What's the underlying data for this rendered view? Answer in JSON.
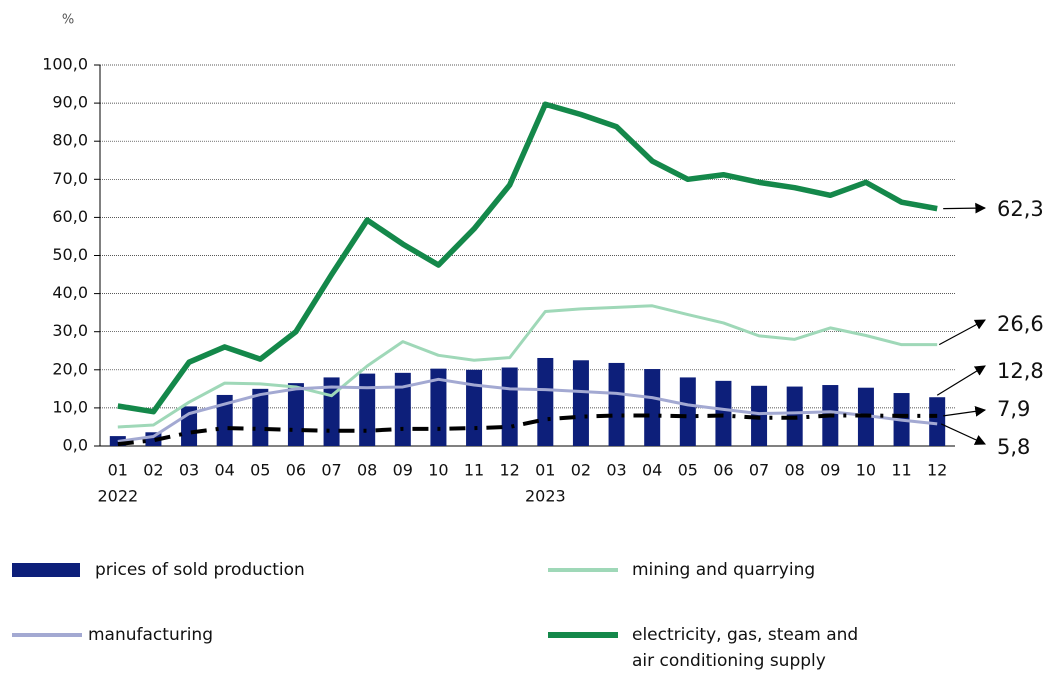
{
  "chart_data": {
    "type": "bar",
    "y_label": "%",
    "categories": [
      "01",
      "02",
      "03",
      "04",
      "05",
      "06",
      "07",
      "08",
      "09",
      "10",
      "11",
      "12",
      "01",
      "02",
      "03",
      "04",
      "05",
      "06",
      "07",
      "08",
      "09",
      "10",
      "11",
      "12"
    ],
    "category_years": [
      "2022",
      null,
      null,
      null,
      null,
      null,
      null,
      null,
      null,
      null,
      null,
      null,
      "2023",
      null,
      null,
      null,
      null,
      null,
      null,
      null,
      null,
      null,
      null,
      null
    ],
    "ylim": [
      0,
      100
    ],
    "yticks": [
      {
        "value": 0,
        "label": "0,0"
      },
      {
        "value": 10,
        "label": "10,0"
      },
      {
        "value": 20,
        "label": "20,0"
      },
      {
        "value": 30,
        "label": "30,0"
      },
      {
        "value": 40,
        "label": "40,0"
      },
      {
        "value": 50,
        "label": "50,0"
      },
      {
        "value": 60,
        "label": "60,0"
      },
      {
        "value": 70,
        "label": "70,0"
      },
      {
        "value": 80,
        "label": "80,0"
      },
      {
        "value": 90,
        "label": "90,0"
      },
      {
        "value": 100,
        "label": "100,0"
      }
    ],
    "grid": true,
    "series": [
      {
        "name": "prices of sold production",
        "type": "bar",
        "color": "#0d1f7a",
        "values": [
          2.6,
          3.6,
          10.4,
          13.4,
          15.0,
          16.5,
          18.0,
          19.0,
          19.2,
          20.3,
          20.0,
          20.6,
          23.1,
          22.5,
          21.8,
          20.2,
          18.0,
          17.1,
          15.8,
          15.6,
          16.0,
          15.3,
          13.9,
          12.8
        ],
        "value_labels": [
          null,
          null,
          null,
          null,
          null,
          null,
          null,
          null,
          null,
          null,
          null,
          null,
          null,
          null,
          null,
          null,
          null,
          null,
          null,
          null,
          null,
          null,
          null,
          "12,8"
        ]
      },
      {
        "name": "mining and quarrying",
        "type": "line",
        "color": "#9fd8b8",
        "values": [
          5.0,
          5.5,
          11.5,
          16.5,
          16.3,
          15.5,
          13.2,
          21.0,
          27.4,
          23.8,
          22.5,
          23.2,
          35.3,
          36.0,
          36.4,
          36.8,
          34.5,
          32.3,
          28.9,
          28.0,
          31.0,
          29.0,
          26.6,
          26.6
        ],
        "value_labels": [
          null,
          null,
          null,
          null,
          null,
          null,
          null,
          null,
          null,
          null,
          null,
          null,
          null,
          null,
          null,
          null,
          null,
          null,
          null,
          null,
          null,
          null,
          null,
          "26,6"
        ]
      },
      {
        "name": "manufacturing",
        "type": "line",
        "color": "#a3a9d2",
        "values": [
          1.2,
          2.5,
          8.5,
          11.0,
          13.5,
          15.0,
          15.5,
          15.3,
          15.5,
          17.5,
          16.0,
          15.0,
          14.8,
          14.3,
          13.8,
          12.7,
          10.8,
          9.6,
          8.5,
          8.7,
          9.0,
          8.0,
          6.8,
          5.8
        ],
        "value_labels": [
          null,
          null,
          null,
          null,
          null,
          null,
          null,
          null,
          null,
          null,
          null,
          null,
          null,
          null,
          null,
          null,
          null,
          null,
          null,
          null,
          null,
          null,
          null,
          "5,8"
        ]
      },
      {
        "name": "electricity, gas, steam and\nair conditioning supply",
        "type": "line",
        "color": "#14884a",
        "values": [
          10.5,
          9.0,
          22.0,
          26.0,
          22.8,
          30.0,
          45.0,
          59.3,
          53.0,
          47.5,
          57.0,
          68.5,
          89.7,
          87.0,
          83.8,
          74.8,
          70.0,
          71.2,
          69.2,
          67.8,
          65.8,
          69.2,
          64.0,
          62.3
        ],
        "value_labels": [
          null,
          null,
          null,
          null,
          null,
          null,
          null,
          null,
          null,
          null,
          null,
          null,
          null,
          null,
          null,
          null,
          null,
          null,
          null,
          null,
          null,
          null,
          null,
          "62,3"
        ]
      },
      {
        "type": "line",
        "color": "#000000",
        "dashed": true,
        "values": [
          0.5,
          1.5,
          3.5,
          4.7,
          4.5,
          4.2,
          4.0,
          4.0,
          4.5,
          4.5,
          4.7,
          5.0,
          7.0,
          7.7,
          8.0,
          8.0,
          7.8,
          8.0,
          7.4,
          7.4,
          8.0,
          8.0,
          7.9,
          7.9
        ],
        "value_labels": [
          null,
          null,
          null,
          null,
          null,
          null,
          null,
          null,
          null,
          null,
          null,
          null,
          null,
          null,
          null,
          null,
          null,
          null,
          null,
          null,
          null,
          null,
          null,
          "7,9"
        ]
      }
    ]
  }
}
